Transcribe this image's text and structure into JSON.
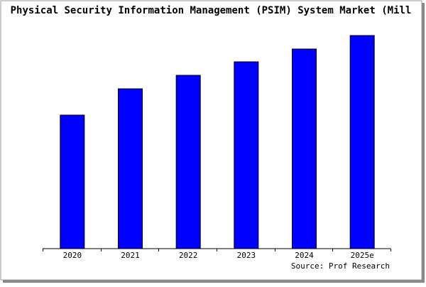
{
  "chart_data": {
    "type": "bar",
    "title": "Physical Security Information Management (PSIM) System Market (Mill",
    "categories": [
      "2020",
      "2021",
      "2022",
      "2023",
      "2024",
      "2025e"
    ],
    "values": [
      188,
      225,
      244,
      263,
      281,
      300
    ],
    "color": "#0000ff",
    "ylim": [
      0,
      305
    ],
    "source": "Source: Prof Research"
  }
}
